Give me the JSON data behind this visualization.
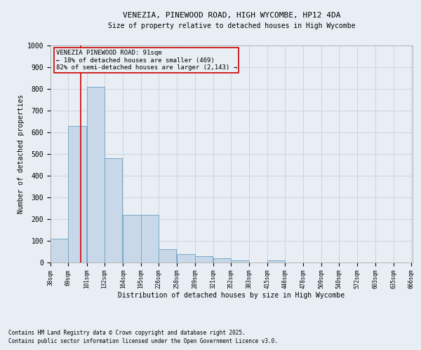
{
  "title1": "VENEZIA, PINEWOOD ROAD, HIGH WYCOMBE, HP12 4DA",
  "title2": "Size of property relative to detached houses in High Wycombe",
  "xlabel": "Distribution of detached houses by size in High Wycombe",
  "ylabel": "Number of detached properties",
  "footer1": "Contains HM Land Registry data © Crown copyright and database right 2025.",
  "footer2": "Contains public sector information licensed under the Open Government Licence v3.0.",
  "annotation_title": "VENEZIA PINEWOOD ROAD: 91sqm",
  "annotation_line1": "← 18% of detached houses are smaller (469)",
  "annotation_line2": "82% of semi-detached houses are larger (2,143) →",
  "property_size": 91,
  "bar_left_edges": [
    38,
    69,
    101,
    132,
    164,
    195,
    226,
    258,
    289,
    321,
    352,
    383,
    415,
    446,
    478,
    509,
    540,
    572,
    603,
    635
  ],
  "bar_heights": [
    110,
    630,
    810,
    480,
    220,
    220,
    60,
    40,
    30,
    20,
    10,
    0,
    10,
    0,
    0,
    0,
    0,
    0,
    0,
    0
  ],
  "bin_width": 31,
  "bar_color": "#c8d8e8",
  "bar_edge_color": "#7aa8c8",
  "line_color": "#cc0000",
  "annotation_box_edge": "#cc0000",
  "grid_color": "#c8d0d8",
  "bg_color": "#e8eef4",
  "ylim": [
    0,
    1000
  ],
  "yticks": [
    0,
    100,
    200,
    300,
    400,
    500,
    600,
    700,
    800,
    900,
    1000
  ],
  "tick_labels": [
    "38sqm",
    "69sqm",
    "101sqm",
    "132sqm",
    "164sqm",
    "195sqm",
    "226sqm",
    "258sqm",
    "289sqm",
    "321sqm",
    "352sqm",
    "383sqm",
    "415sqm",
    "446sqm",
    "478sqm",
    "509sqm",
    "540sqm",
    "572sqm",
    "603sqm",
    "635sqm",
    "666sqm"
  ]
}
